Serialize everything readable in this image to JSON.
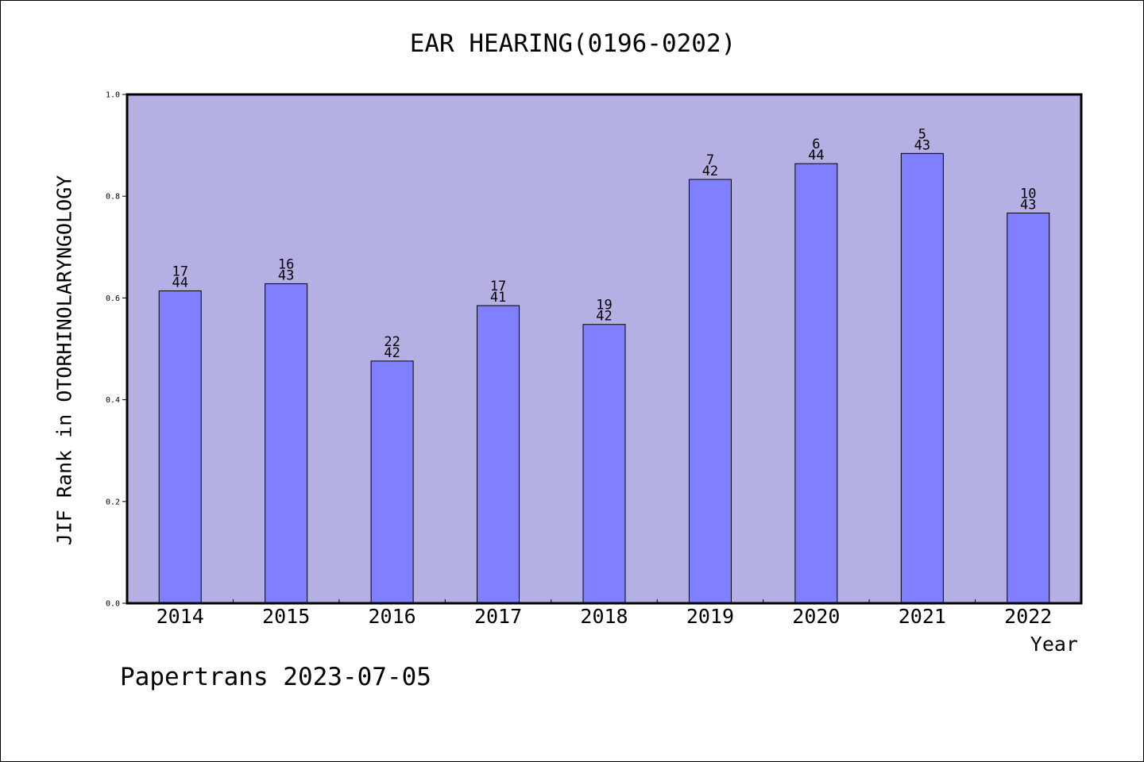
{
  "chart_data": {
    "type": "bar",
    "title": "EAR HEARING(0196-0202)",
    "xlabel": "Year",
    "ylabel": "JIF Rank in OTORHINOLARYNGOLOGY",
    "ylim": [
      0,
      1.0
    ],
    "yticks": [
      "0.0",
      "0.2",
      "0.4",
      "0.6",
      "0.8",
      "1.0"
    ],
    "categories": [
      "2014",
      "2015",
      "2016",
      "2017",
      "2018",
      "2019",
      "2020",
      "2021",
      "2022"
    ],
    "values": [
      0.614,
      0.628,
      0.476,
      0.585,
      0.548,
      0.833,
      0.864,
      0.884,
      0.767
    ],
    "rank_labels": [
      "17",
      "16",
      "22",
      "17",
      "19",
      "7",
      "6",
      "5",
      "10"
    ],
    "total_labels": [
      "44",
      "43",
      "42",
      "41",
      "42",
      "42",
      "44",
      "43",
      "43"
    ],
    "grid": false,
    "colors": {
      "plot_background": "#b5b0e3",
      "bar": "#8080ff",
      "bar_edge": "#000000"
    }
  },
  "footer": "Papertrans 2023-07-05"
}
